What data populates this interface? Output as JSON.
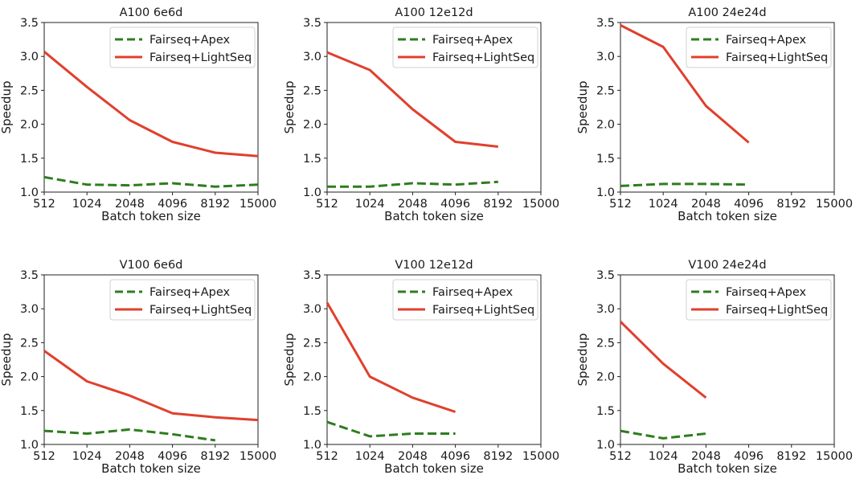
{
  "colors": {
    "apex": "#2e7d1f",
    "lightseq": "#e0402d"
  },
  "chart_data": [
    {
      "type": "line",
      "title": "A100 6e6d",
      "xlabel": "Batch token size",
      "ylabel": "Speedup",
      "categories": [
        "512",
        "1024",
        "2048",
        "4096",
        "8192",
        "15000"
      ],
      "ylim": [
        1.0,
        3.5
      ],
      "yticks": [
        "1.0",
        "1.5",
        "2.0",
        "2.5",
        "3.0",
        "3.5"
      ],
      "legend_position": "upper-right",
      "series": [
        {
          "name": "Fairseq+Apex",
          "style": "dashed",
          "values": [
            1.22,
            1.11,
            1.1,
            1.13,
            1.08,
            1.11
          ]
        },
        {
          "name": "Fairseq+LightSeq",
          "style": "solid",
          "values": [
            3.07,
            2.55,
            2.06,
            1.74,
            1.58,
            1.53
          ]
        }
      ]
    },
    {
      "type": "line",
      "title": "A100 12e12d",
      "xlabel": "Batch token size",
      "ylabel": "Speedup",
      "categories": [
        "512",
        "1024",
        "2048",
        "4096",
        "8192",
        "15000"
      ],
      "ylim": [
        1.0,
        3.5
      ],
      "yticks": [
        "1.0",
        "1.5",
        "2.0",
        "2.5",
        "3.0",
        "3.5"
      ],
      "legend_position": "upper-right",
      "series": [
        {
          "name": "Fairseq+Apex",
          "style": "dashed",
          "values": [
            1.08,
            1.08,
            1.13,
            1.11,
            1.15,
            null
          ]
        },
        {
          "name": "Fairseq+LightSeq",
          "style": "solid",
          "values": [
            3.06,
            2.8,
            2.22,
            1.74,
            1.67,
            null
          ]
        }
      ]
    },
    {
      "type": "line",
      "title": "A100 24e24d",
      "xlabel": "Batch token size",
      "ylabel": "Speedup",
      "categories": [
        "512",
        "1024",
        "2048",
        "4096",
        "8192",
        "15000"
      ],
      "ylim": [
        1.0,
        3.5
      ],
      "yticks": [
        "1.0",
        "1.5",
        "2.0",
        "2.5",
        "3.0",
        "3.5"
      ],
      "legend_position": "upper-right",
      "series": [
        {
          "name": "Fairseq+Apex",
          "style": "dashed",
          "values": [
            1.09,
            1.12,
            1.12,
            1.11,
            null,
            null
          ]
        },
        {
          "name": "Fairseq+LightSeq",
          "style": "solid",
          "values": [
            3.46,
            3.14,
            2.27,
            1.73,
            null,
            null
          ]
        }
      ]
    },
    {
      "type": "line",
      "title": "V100 6e6d",
      "xlabel": "Batch token size",
      "ylabel": "Speedup",
      "categories": [
        "512",
        "1024",
        "2048",
        "4096",
        "8192",
        "15000"
      ],
      "ylim": [
        1.0,
        3.5
      ],
      "yticks": [
        "1.0",
        "1.5",
        "2.0",
        "2.5",
        "3.0",
        "3.5"
      ],
      "legend_position": "upper-right",
      "series": [
        {
          "name": "Fairseq+Apex",
          "style": "dashed",
          "values": [
            1.2,
            1.16,
            1.22,
            1.15,
            1.06,
            null
          ]
        },
        {
          "name": "Fairseq+LightSeq",
          "style": "solid",
          "values": [
            2.38,
            1.93,
            1.72,
            1.46,
            1.4,
            1.36
          ]
        }
      ]
    },
    {
      "type": "line",
      "title": "V100 12e12d",
      "xlabel": "Batch token size",
      "ylabel": "Speedup",
      "categories": [
        "512",
        "1024",
        "2048",
        "4096",
        "8192",
        "15000"
      ],
      "ylim": [
        1.0,
        3.5
      ],
      "yticks": [
        "1.0",
        "1.5",
        "2.0",
        "2.5",
        "3.0",
        "3.5"
      ],
      "legend_position": "upper-right",
      "series": [
        {
          "name": "Fairseq+Apex",
          "style": "dashed",
          "values": [
            1.33,
            1.12,
            1.16,
            1.16,
            null,
            null
          ]
        },
        {
          "name": "Fairseq+LightSeq",
          "style": "solid",
          "values": [
            3.09,
            2.0,
            1.69,
            1.48,
            null,
            null
          ]
        }
      ]
    },
    {
      "type": "line",
      "title": "V100 24e24d",
      "xlabel": "Batch token size",
      "ylabel": "Speedup",
      "categories": [
        "512",
        "1024",
        "2048",
        "4096",
        "8192",
        "15000"
      ],
      "ylim": [
        1.0,
        3.5
      ],
      "yticks": [
        "1.0",
        "1.5",
        "2.0",
        "2.5",
        "3.0",
        "3.5"
      ],
      "legend_position": "upper-right",
      "series": [
        {
          "name": "Fairseq+Apex",
          "style": "dashed",
          "values": [
            1.2,
            1.09,
            1.16,
            null,
            null,
            null
          ]
        },
        {
          "name": "Fairseq+LightSeq",
          "style": "solid",
          "values": [
            2.81,
            2.19,
            1.69,
            null,
            null,
            null
          ]
        }
      ]
    }
  ]
}
